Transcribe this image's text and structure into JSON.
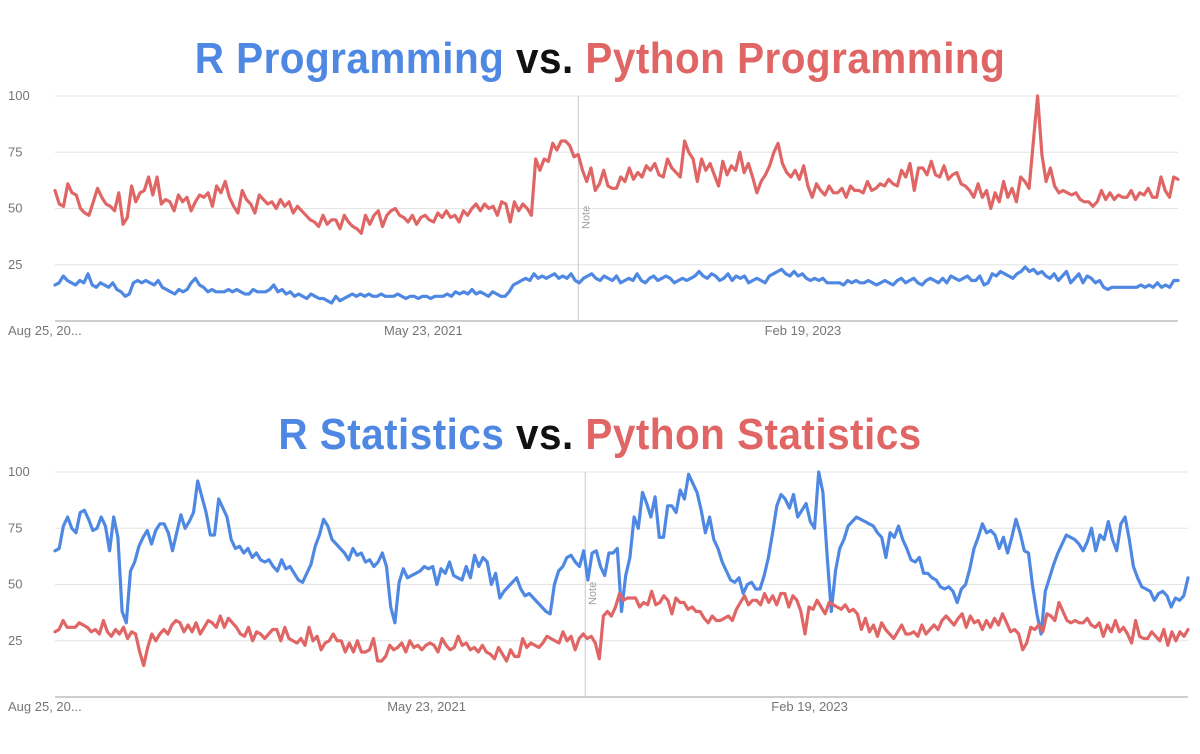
{
  "colors": {
    "r": "#4f88e3",
    "python": "#e06666",
    "vs": "#111111",
    "grid": "#e4e4e4",
    "axis": "#9e9e9e"
  },
  "chart_data": [
    {
      "type": "line",
      "title": {
        "r": "R Programming",
        "vs": "vs.",
        "python": "Python Programming"
      },
      "ylim": [
        0,
        100
      ],
      "yticks": [
        "100",
        "75",
        "50",
        "25"
      ],
      "xticks": [
        "Aug 25, 20...",
        "May 23, 2021",
        "Feb 19, 2023"
      ],
      "note_label": "Note",
      "series": [
        {
          "name": "R Programming",
          "color": "#4f88e3",
          "values": [
            16,
            17,
            20,
            18,
            17,
            16,
            18,
            17,
            21,
            16,
            15,
            17,
            16,
            15,
            17,
            14,
            13,
            11,
            12,
            17,
            18,
            17,
            18,
            17,
            16,
            18,
            15,
            14,
            13,
            12,
            14,
            13,
            14,
            17,
            19,
            16,
            15,
            13,
            14,
            13,
            13,
            13,
            14,
            13,
            14,
            13,
            12,
            12,
            14,
            13,
            13,
            13,
            14,
            16,
            13,
            14,
            12,
            13,
            11,
            12,
            11,
            10,
            12,
            11,
            10,
            10,
            9,
            8,
            11,
            9,
            10,
            11,
            12,
            11,
            12,
            11,
            12,
            11,
            11,
            12,
            11,
            11,
            11,
            12,
            11,
            10,
            11,
            11,
            10,
            11,
            11,
            10,
            11,
            11,
            11,
            12,
            11,
            13,
            12,
            13,
            12,
            14,
            12,
            13,
            12,
            11,
            13,
            12,
            11,
            11,
            13,
            16,
            17,
            18,
            19,
            18,
            21,
            19,
            20,
            19,
            20,
            21,
            19,
            20,
            19,
            21,
            18,
            17,
            19,
            20,
            21,
            19,
            18,
            20,
            19,
            18,
            20,
            17,
            18,
            19,
            18,
            21,
            18,
            17,
            19,
            20,
            18,
            19,
            20,
            19,
            17,
            18,
            19,
            18,
            19,
            20,
            22,
            20,
            19,
            21,
            20,
            18,
            19,
            21,
            18,
            20,
            19,
            20,
            17,
            18,
            19,
            18,
            17,
            20,
            21,
            22,
            23,
            21,
            20,
            22,
            20,
            21,
            19,
            18,
            19,
            18,
            19,
            17,
            17,
            17,
            17,
            16,
            18,
            17,
            18,
            17,
            17,
            18,
            17,
            16,
            17,
            18,
            17,
            16,
            18,
            19,
            17,
            18,
            19,
            17,
            16,
            18,
            19,
            18,
            17,
            19,
            17,
            20,
            19,
            18,
            19,
            20,
            18,
            18,
            20,
            16,
            17,
            21,
            20,
            22,
            21,
            20,
            19,
            21,
            22,
            24,
            22,
            23,
            21,
            22,
            20,
            19,
            21,
            18,
            20,
            22,
            17,
            19,
            21,
            17,
            20,
            19,
            17,
            18,
            15,
            14,
            15,
            15,
            15,
            15,
            15,
            15,
            15,
            16,
            15,
            16,
            15,
            17,
            15,
            16,
            15,
            18,
            18
          ]
        },
        {
          "name": "Python Programming",
          "color": "#e06666",
          "values": [
            58,
            52,
            51,
            61,
            57,
            56,
            50,
            48,
            47,
            53,
            59,
            55,
            52,
            51,
            49,
            57,
            43,
            46,
            60,
            53,
            57,
            58,
            64,
            56,
            64,
            52,
            54,
            53,
            49,
            56,
            53,
            55,
            49,
            53,
            56,
            55,
            57,
            51,
            60,
            57,
            62,
            55,
            51,
            48,
            58,
            54,
            52,
            48,
            56,
            54,
            52,
            53,
            50,
            54,
            51,
            53,
            48,
            51,
            49,
            47,
            45,
            44,
            42,
            47,
            43,
            45,
            45,
            41,
            47,
            44,
            42,
            41,
            39,
            47,
            43,
            47,
            49,
            42,
            47,
            49,
            50,
            47,
            46,
            44,
            47,
            43,
            46,
            47,
            45,
            44,
            48,
            46,
            49,
            46,
            47,
            44,
            49,
            47,
            50,
            52,
            49,
            52,
            50,
            51,
            47,
            53,
            52,
            44,
            53,
            49,
            52,
            50,
            47,
            72,
            67,
            72,
            71,
            79,
            76,
            80,
            80,
            78,
            73,
            74,
            67,
            62,
            68,
            58,
            61,
            67,
            60,
            59,
            59,
            64,
            62,
            68,
            63,
            66,
            64,
            69,
            67,
            70,
            65,
            64,
            72,
            68,
            66,
            64,
            80,
            75,
            72,
            62,
            72,
            67,
            70,
            65,
            60,
            71,
            65,
            69,
            67,
            75,
            66,
            70,
            64,
            57,
            62,
            65,
            69,
            75,
            79,
            70,
            66,
            64,
            67,
            63,
            69,
            60,
            55,
            61,
            58,
            56,
            60,
            57,
            57,
            59,
            55,
            60,
            58,
            58,
            57,
            62,
            58,
            59,
            61,
            60,
            63,
            61,
            60,
            67,
            64,
            70,
            58,
            68,
            68,
            65,
            71,
            65,
            64,
            69,
            63,
            65,
            66,
            61,
            60,
            58,
            55,
            61,
            55,
            58,
            50,
            57,
            53,
            62,
            55,
            59,
            53,
            64,
            62,
            59,
            80,
            100,
            74,
            62,
            68,
            60,
            57,
            58,
            57,
            56,
            57,
            54,
            53,
            53,
            51,
            53,
            58,
            54,
            57,
            54,
            56,
            55,
            55,
            58,
            54,
            57,
            56,
            59,
            55,
            55,
            64,
            58,
            55,
            64,
            63
          ]
        }
      ]
    },
    {
      "type": "line",
      "title": {
        "r": "R Statistics",
        "vs": "vs.",
        "python": "Python Statistics"
      },
      "ylim": [
        0,
        100
      ],
      "yticks": [
        "100",
        "75",
        "50",
        "25"
      ],
      "xticks": [
        "Aug 25, 20...",
        "May 23, 2021",
        "Feb 19, 2023"
      ],
      "note_label": "Note",
      "series": [
        {
          "name": "R Statistics",
          "color": "#4f88e3",
          "values": [
            65,
            66,
            76,
            80,
            75,
            73,
            82,
            83,
            79,
            74,
            75,
            80,
            76,
            65,
            80,
            71,
            38,
            33,
            56,
            60,
            67,
            71,
            74,
            68,
            74,
            77,
            77,
            73,
            65,
            73,
            81,
            75,
            78,
            82,
            96,
            89,
            82,
            72,
            72,
            88,
            84,
            80,
            70,
            66,
            67,
            64,
            66,
            62,
            64,
            61,
            60,
            61,
            58,
            56,
            61,
            57,
            58,
            55,
            52,
            51,
            55,
            59,
            67,
            72,
            79,
            76,
            70,
            68,
            66,
            64,
            61,
            66,
            63,
            64,
            60,
            61,
            58,
            60,
            64,
            58,
            40,
            33,
            51,
            57,
            53,
            54,
            55,
            56,
            58,
            57,
            58,
            50,
            57,
            55,
            60,
            54,
            53,
            52,
            58,
            53,
            63,
            58,
            62,
            60,
            50,
            55,
            44,
            47,
            49,
            51,
            53,
            48,
            45,
            46,
            44,
            42,
            40,
            38,
            37,
            50,
            56,
            58,
            62,
            63,
            60,
            58,
            65,
            52,
            64,
            65,
            58,
            54,
            64,
            64,
            66,
            38,
            54,
            62,
            80,
            75,
            91,
            86,
            80,
            89,
            71,
            71,
            85,
            85,
            82,
            92,
            88,
            99,
            95,
            91,
            83,
            73,
            80,
            70,
            66,
            60,
            56,
            52,
            51,
            53,
            46,
            50,
            51,
            48,
            48,
            54,
            62,
            73,
            85,
            90,
            88,
            84,
            90,
            80,
            83,
            86,
            78,
            75,
            100,
            91,
            63,
            38,
            56,
            66,
            70,
            76,
            78,
            80,
            79,
            78,
            77,
            76,
            73,
            71,
            62,
            73,
            71,
            76,
            70,
            66,
            61,
            60,
            62,
            55,
            55,
            53,
            52,
            49,
            48,
            49,
            47,
            42,
            48,
            50,
            57,
            66,
            71,
            77,
            73,
            74,
            72,
            66,
            71,
            64,
            71,
            79,
            73,
            65,
            64,
            49,
            37,
            28,
            47,
            53,
            59,
            64,
            68,
            72,
            71,
            70,
            68,
            65,
            69,
            75,
            65,
            72,
            70,
            78,
            70,
            65,
            77,
            80,
            70,
            58,
            53,
            49,
            48,
            47,
            43,
            46,
            47,
            45,
            40,
            44,
            43,
            45,
            53
          ]
        },
        {
          "name": "Python Statistics",
          "color": "#e06666",
          "values": [
            29,
            30,
            34,
            31,
            31,
            31,
            33,
            32,
            31,
            29,
            30,
            28,
            34,
            29,
            27,
            30,
            28,
            31,
            26,
            29,
            28,
            20,
            14,
            22,
            28,
            25,
            28,
            30,
            28,
            32,
            34,
            33,
            29,
            32,
            29,
            33,
            28,
            31,
            34,
            33,
            31,
            36,
            31,
            35,
            33,
            31,
            28,
            27,
            31,
            25,
            29,
            28,
            26,
            28,
            30,
            30,
            25,
            31,
            26,
            25,
            24,
            26,
            23,
            31,
            25,
            27,
            21,
            24,
            25,
            28,
            25,
            25,
            20,
            24,
            20,
            25,
            20,
            20,
            21,
            26,
            16,
            16,
            18,
            23,
            21,
            22,
            24,
            20,
            25,
            22,
            23,
            21,
            23,
            24,
            23,
            20,
            26,
            23,
            21,
            22,
            27,
            23,
            24,
            21,
            22,
            20,
            23,
            20,
            19,
            17,
            22,
            19,
            16,
            21,
            18,
            18,
            26,
            22,
            24,
            23,
            22,
            24,
            27,
            26,
            25,
            24,
            29,
            25,
            27,
            21,
            26,
            28,
            26,
            27,
            24,
            17,
            36,
            38,
            36,
            40,
            46,
            43,
            44,
            44,
            44,
            40,
            42,
            41,
            47,
            41,
            42,
            45,
            43,
            37,
            44,
            42,
            42,
            39,
            40,
            38,
            38,
            35,
            33,
            36,
            34,
            34,
            35,
            36,
            34,
            39,
            42,
            45,
            41,
            43,
            43,
            41,
            46,
            42,
            45,
            41,
            46,
            46,
            40,
            45,
            43,
            38,
            28,
            40,
            39,
            43,
            40,
            37,
            42,
            41,
            40,
            39,
            41,
            38,
            39,
            37,
            30,
            35,
            29,
            32,
            27,
            33,
            30,
            28,
            26,
            29,
            32,
            28,
            28,
            29,
            27,
            32,
            28,
            30,
            32,
            30,
            34,
            36,
            34,
            32,
            35,
            37,
            31,
            36,
            33,
            34,
            30,
            34,
            31,
            35,
            32,
            37,
            33,
            29,
            30,
            28,
            21,
            24,
            31,
            30,
            32,
            29,
            37,
            36,
            34,
            42,
            38,
            34,
            33,
            34,
            33,
            33,
            35,
            32,
            31,
            33,
            27,
            32,
            29,
            34,
            29,
            31,
            28,
            24,
            34,
            27,
            26,
            26,
            29,
            27,
            25,
            30,
            23,
            29,
            25,
            29,
            27,
            30
          ]
        }
      ]
    }
  ]
}
